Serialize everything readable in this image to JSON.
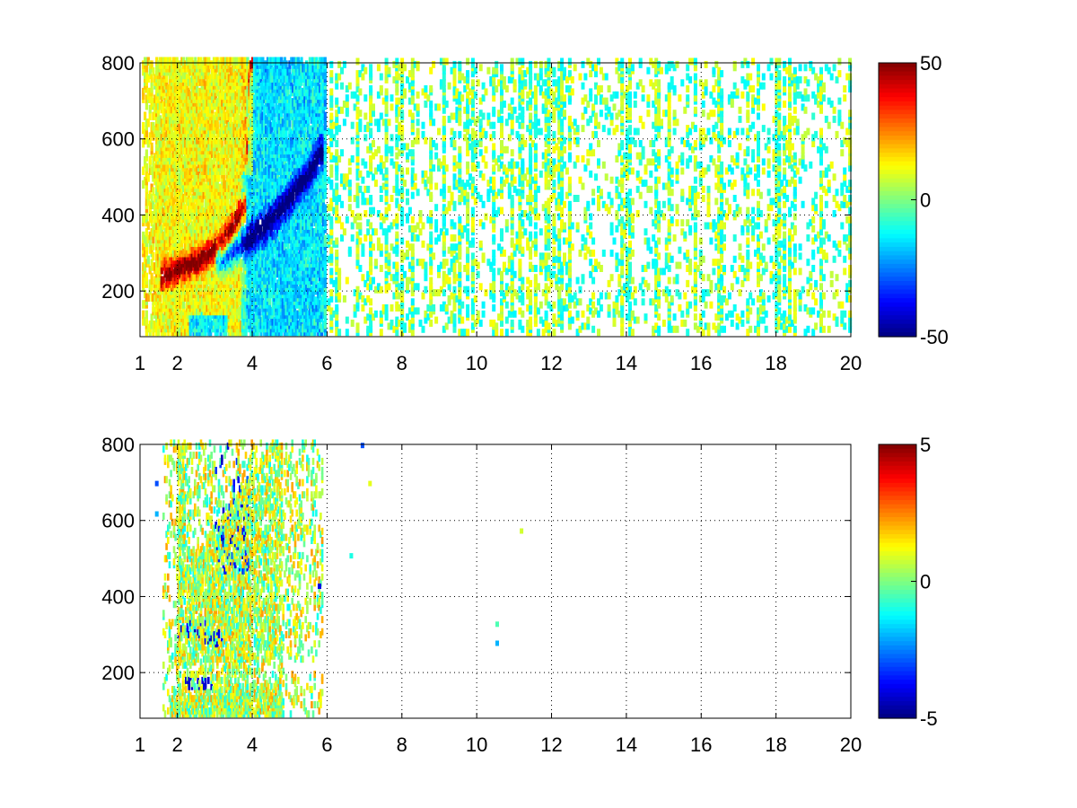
{
  "chart_data": [
    {
      "type": "heatmap",
      "title": "",
      "xlabel": "",
      "ylabel": "",
      "xlim": [
        1,
        20
      ],
      "ylim": [
        80,
        800
      ],
      "x_ticks": [
        1,
        2,
        4,
        6,
        8,
        10,
        12,
        14,
        16,
        18,
        20
      ],
      "x_tick_labels": [
        "1",
        "2",
        "4",
        "6",
        "8",
        "10",
        "12",
        "14",
        "16",
        "18",
        "20"
      ],
      "y_ticks": [
        200,
        400,
        600,
        800
      ],
      "y_tick_labels": [
        "200",
        "400",
        "600",
        "800"
      ],
      "grid": true,
      "colormap": "jet",
      "clim": [
        -50,
        50
      ],
      "colorbar_ticks": [
        50,
        0,
        -50
      ],
      "colorbar_tick_labels": [
        "50",
        "0",
        "-50"
      ],
      "features": [
        {
          "name": "positive ridge",
          "x": [
            1.5,
            2.5,
            3.2,
            3.8,
            3.9
          ],
          "y": [
            230,
            270,
            320,
            420,
            800
          ],
          "value": 45
        },
        {
          "name": "negative ridge",
          "x": [
            3.2,
            3.8,
            4.5,
            5.5,
            5.8
          ],
          "y": [
            280,
            320,
            380,
            500,
            560
          ],
          "value": -45
        },
        {
          "name": "positive band",
          "x": [
            1.5,
            3.0
          ],
          "y": [
            80,
            800
          ],
          "value": 15
        },
        {
          "name": "negative band",
          "x": [
            3.8,
            5.8
          ],
          "y": [
            80,
            800
          ],
          "value": -20
        },
        {
          "name": "sparse scatter",
          "x": [
            6,
            20
          ],
          "y": [
            80,
            800
          ],
          "value": 0
        }
      ]
    },
    {
      "type": "heatmap",
      "title": "",
      "xlabel": "",
      "ylabel": "",
      "xlim": [
        1,
        20
      ],
      "ylim": [
        80,
        800
      ],
      "x_ticks": [
        1,
        2,
        4,
        6,
        8,
        10,
        12,
        14,
        16,
        18,
        20
      ],
      "x_tick_labels": [
        "1",
        "2",
        "4",
        "6",
        "8",
        "10",
        "12",
        "14",
        "16",
        "18",
        "20"
      ],
      "y_ticks": [
        200,
        400,
        600,
        800
      ],
      "y_tick_labels": [
        "200",
        "400",
        "600",
        "800"
      ],
      "grid": true,
      "colormap": "jet",
      "clim": [
        -5,
        5
      ],
      "colorbar_ticks": [
        5,
        0,
        -5
      ],
      "colorbar_tick_labels": [
        "5",
        "0",
        "-5"
      ],
      "features": [
        {
          "name": "main cluster",
          "x": [
            1.6,
            5.8
          ],
          "y": [
            80,
            800
          ],
          "value": 0.5
        },
        {
          "name": "low band",
          "x": [
            1.8,
            4.8
          ],
          "y": [
            90,
            130
          ],
          "value": 0.8
        },
        {
          "name": "negative patch",
          "x": [
            2.2,
            2.9
          ],
          "y": [
            150,
            180
          ],
          "value": -4
        },
        {
          "name": "isolated points",
          "x": [
            6.9,
            11.1
          ],
          "y": [
            270,
            790
          ],
          "value": -1
        }
      ]
    }
  ]
}
